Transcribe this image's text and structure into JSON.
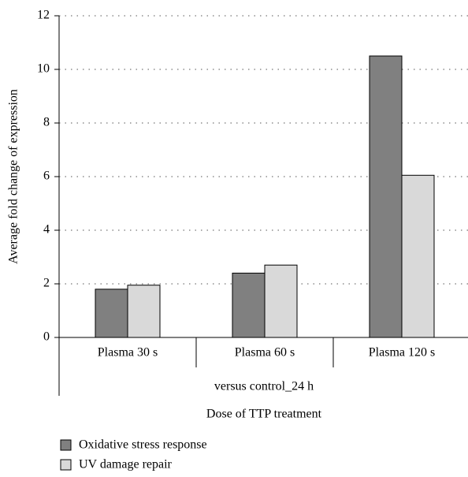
{
  "chart_data": {
    "type": "bar",
    "ylabel": "Average fold change of expression",
    "xlabel": "Dose of TTP treatment",
    "group_label": "versus control_24 h",
    "categories": [
      "Plasma 30 s",
      "Plasma 60 s",
      "Plasma 120 s"
    ],
    "series": [
      {
        "name": "Oxidative stress response",
        "color": "#808080",
        "values": [
          1.8,
          2.4,
          10.5
        ]
      },
      {
        "name": "UV damage repair",
        "color": "#d9d9d9",
        "values": [
          1.95,
          2.7,
          6.05
        ]
      }
    ],
    "ylim": [
      0,
      12
    ],
    "yticks": [
      0,
      2,
      4,
      6,
      8,
      10,
      12
    ],
    "grid": true
  }
}
